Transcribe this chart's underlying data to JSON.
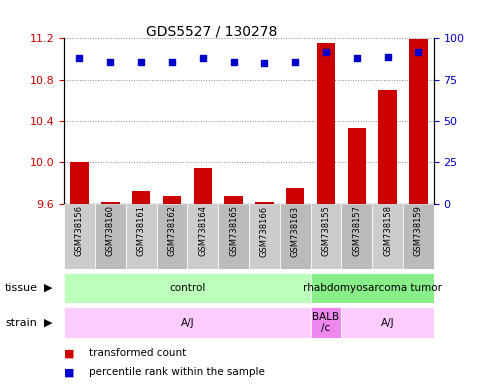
{
  "title": "GDS5527 / 130278",
  "samples": [
    "GSM738156",
    "GSM738160",
    "GSM738161",
    "GSM738162",
    "GSM738164",
    "GSM738165",
    "GSM738166",
    "GSM738163",
    "GSM738155",
    "GSM738157",
    "GSM738158",
    "GSM738159"
  ],
  "bar_values": [
    10.0,
    9.61,
    9.72,
    9.67,
    9.94,
    9.67,
    9.61,
    9.75,
    11.16,
    10.33,
    10.7,
    11.19
  ],
  "dot_values": [
    88,
    86,
    86,
    86,
    88,
    86,
    85,
    86,
    92,
    88,
    89,
    92
  ],
  "ylim_left": [
    9.6,
    11.2
  ],
  "ylim_right": [
    0,
    100
  ],
  "yticks_left": [
    9.6,
    10.0,
    10.4,
    10.8,
    11.2
  ],
  "yticks_right": [
    0,
    25,
    50,
    75,
    100
  ],
  "bar_color": "#cc0000",
  "dot_color": "#0000cc",
  "tissue_labels": [
    {
      "text": "control",
      "start": 0,
      "end": 8,
      "color": "#bbffbb"
    },
    {
      "text": "rhabdomyosarcoma tumor",
      "start": 8,
      "end": 12,
      "color": "#88ee88"
    }
  ],
  "strain_labels": [
    {
      "text": "A/J",
      "start": 0,
      "end": 8,
      "color": "#ffccff"
    },
    {
      "text": "BALB\n/c",
      "start": 8,
      "end": 9,
      "color": "#ee88ee"
    },
    {
      "text": "A/J",
      "start": 9,
      "end": 12,
      "color": "#ffccff"
    }
  ],
  "legend_items": [
    {
      "color": "#cc0000",
      "label": "transformed count"
    },
    {
      "color": "#0000cc",
      "label": "percentile rank within the sample"
    }
  ],
  "background_color": "#ffffff",
  "grid_color": "#888888",
  "tick_label_color_left": "#cc0000",
  "tick_label_color_right": "#0000cc",
  "sample_bg_color": "#cccccc",
  "sample_bg_color2": "#bbbbbb"
}
